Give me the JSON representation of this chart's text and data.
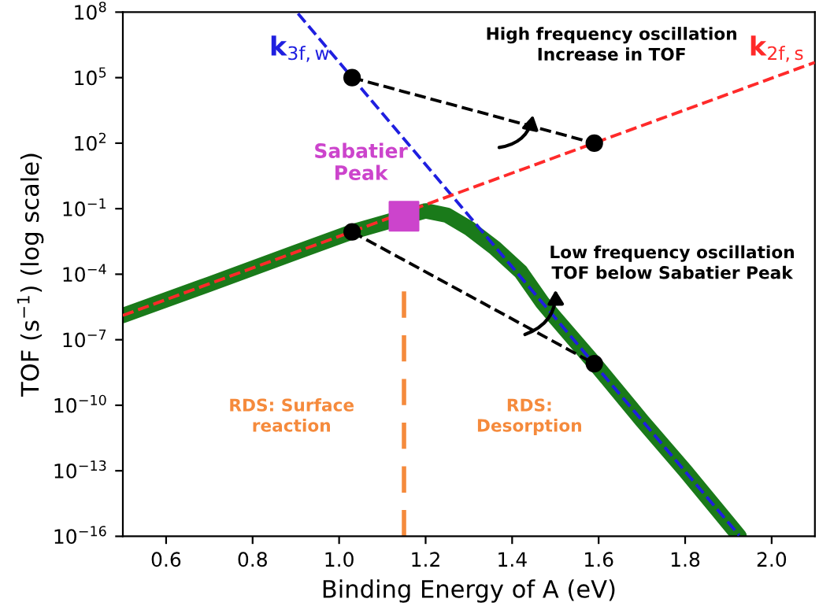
{
  "chart_data": {
    "type": "line",
    "xlabel": "Binding Energy of A (eV)",
    "ylabel": "TOF (s$^{−1}$) (log scale)",
    "log": "y",
    "xlim": [
      0.5,
      2.1
    ],
    "xticks": [
      0.6,
      0.8,
      {
        "value": 1,
        "label": "1.0"
      },
      1.2,
      1.4,
      1.6,
      1.8,
      {
        "value": 2,
        "label": "2.0"
      }
    ],
    "ylim": [
      1e-16,
      100000000.0
    ],
    "yticks": [
      {
        "value": 1e-16,
        "label": "10$^{−16}$"
      },
      {
        "value": 1e-13,
        "label": "10$^{−13}$"
      },
      {
        "value": 1e-10,
        "label": "10$^{−10}$"
      },
      {
        "value": 1e-07,
        "label": "10$^{−7}$"
      },
      {
        "value": 0.0001,
        "label": "10$^{−4}$"
      },
      {
        "value": 0.1,
        "label": "10$^{−1}$"
      },
      {
        "value": 100,
        "label": "10$^{2}$"
      },
      {
        "value": 100000.0,
        "label": "10$^{5}$"
      },
      {
        "value": 100000000.0,
        "label": "10$^{8}$"
      }
    ],
    "grid": false,
    "legend": false,
    "series": [
      {
        "color": "#1a7a1a",
        "x": [
          0.5,
          0.7,
          0.9,
          1.03,
          1.2,
          1.25,
          1.3,
          1.36,
          1.42,
          1.47,
          1.5,
          1.6,
          1.7,
          1.8,
          1.9,
          1.925
        ],
        "values": [
          1.3e-06,
          3.5e-05,
          0.001,
          0.0087,
          0.08,
          0.05,
          0.013,
          0.0016,
          0.00013,
          5e-06,
          1e-06,
          5e-09,
          2e-11,
          1e-13,
          4e-16,
          1e-16
        ]
      },
      {
        "name": "k$_{3f,w}$",
        "color": "#1f1fe0",
        "line_style": "dashed",
        "x": [
          0.905,
          1.925
        ],
        "values": [
          85000000.0,
          1.1e-16
        ]
      },
      {
        "name": "k$_{2f,s}$",
        "color": "#ff2a2a",
        "line_style": "dashed",
        "x": [
          0.5,
          2.1
        ],
        "values": [
          1.3e-06,
          500000.0
        ]
      },
      {
        "color": "#000000",
        "line_style": "dashed",
        "marker": "circle",
        "x": [
          1.03,
          1.59
        ],
        "values": [
          100000.0,
          100
        ]
      },
      {
        "color": "#000000",
        "line_style": "dashed",
        "marker": "circle",
        "x": [
          1.03,
          1.59
        ],
        "values": [
          0.0087,
          8e-09
        ]
      },
      {
        "type": "scatter",
        "name": "Sabatier\nPeak",
        "color": "#cc44cc",
        "marker": "square",
        "x": [
          1.15
        ],
        "values": [
          0.045
        ]
      }
    ],
    "ref_lines": [
      {
        "axis": "x",
        "value": 1.15,
        "color": "#f58a3c",
        "line_style": "dashed"
      }
    ],
    "annotations": [
      "High frequency oscillation\nIncrease in TOF",
      "Low frequency oscillation\nTOF below Sabatier Peak",
      "RDS: Surface\nreaction",
      "RDS:\nDesorption"
    ]
  }
}
